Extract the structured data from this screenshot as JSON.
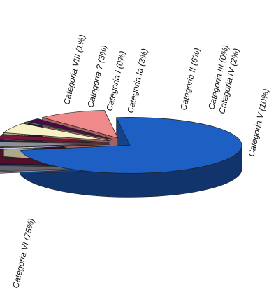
{
  "chart_data": {
    "type": "pie",
    "style": "3d-exploded",
    "title": "",
    "legend": "none",
    "slices": [
      {
        "label": "Categoria VI (75%)",
        "value": 75,
        "color": "#1e5fc4"
      },
      {
        "label": "Categoria VIII (1%)",
        "value": 1,
        "color": "#c9c9ee"
      },
      {
        "label": "Categoria ? (3%)",
        "value": 3,
        "color": "#8e8e96"
      },
      {
        "label": "Categoria I (0%)",
        "value": 0,
        "color": "#0b1e7a"
      },
      {
        "label": "Categoria Ia (3%)",
        "value": 3,
        "color": "#7a1438"
      },
      {
        "label": "Categoria II (6%)",
        "value": 6,
        "color": "#f5f2c6"
      },
      {
        "label": "Categoria III (0%)",
        "value": 0,
        "color": "#4a8a7a"
      },
      {
        "label": "Categoria IV (2%)",
        "value": 2,
        "color": "#4a0848"
      },
      {
        "label": "Categoria V (10%)",
        "value": 10,
        "color": "#f08a8a"
      }
    ]
  }
}
